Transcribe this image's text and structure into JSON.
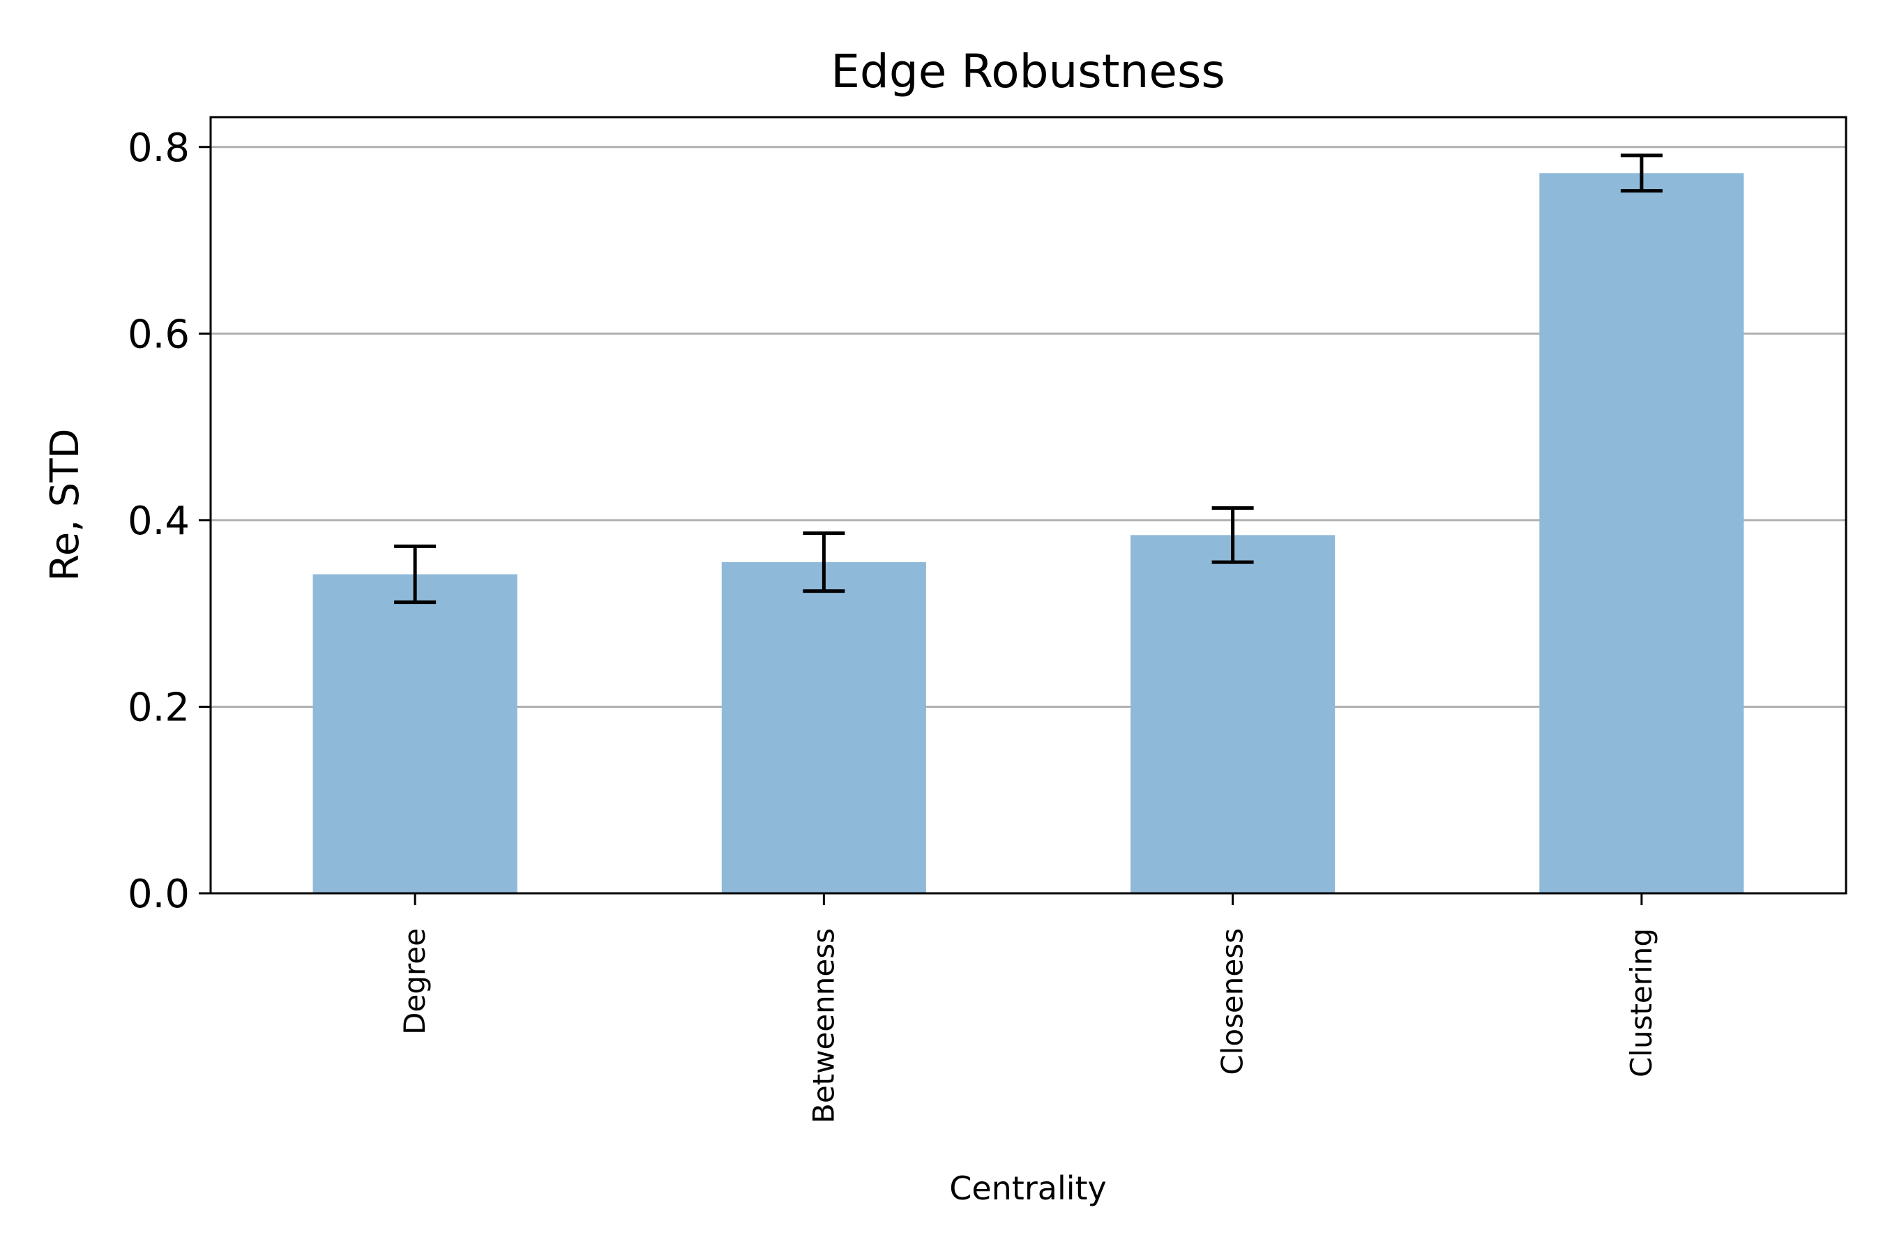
{
  "chart_data": {
    "type": "bar",
    "title": "Edge Robustness",
    "xlabel": "Centrality",
    "ylabel": "Re, STD",
    "categories": [
      "Degree",
      "Betweenness",
      "Closeness",
      "Clustering"
    ],
    "values": [
      0.342,
      0.355,
      0.384,
      0.772
    ],
    "errors": [
      0.03,
      0.031,
      0.029,
      0.019
    ],
    "ylim": [
      0,
      0.832
    ],
    "yticks": [
      0.0,
      0.2,
      0.4,
      0.6,
      0.8
    ],
    "ytick_labels": [
      "0.0",
      "0.2",
      "0.4",
      "0.6",
      "0.8"
    ],
    "grid": "y",
    "legend": "none",
    "bar_color": "#8fb9d9",
    "error_color": "#000000",
    "grid_color": "#b0b0b0"
  }
}
